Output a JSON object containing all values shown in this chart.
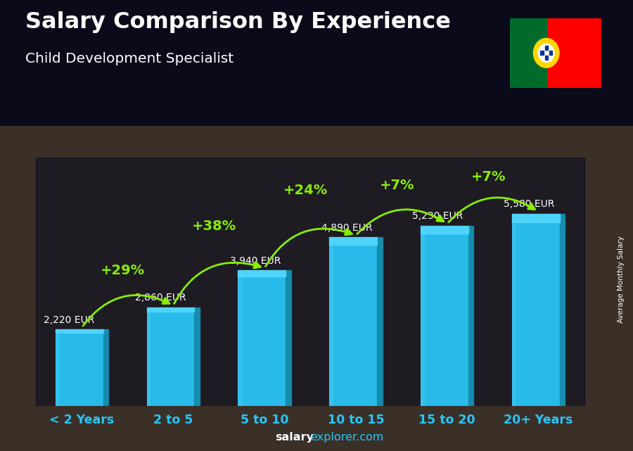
{
  "title": "Salary Comparison By Experience",
  "subtitle": "Child Development Specialist",
  "categories": [
    "< 2 Years",
    "2 to 5",
    "5 to 10",
    "10 to 15",
    "15 to 20",
    "20+ Years"
  ],
  "values": [
    2220,
    2860,
    3940,
    4890,
    5230,
    5580
  ],
  "bar_color_main": "#29C5F6",
  "bar_color_light": "#55D8FF",
  "bar_color_dark": "#1A9DC4",
  "bar_color_side": "#1588A8",
  "pct_changes": [
    "+29%",
    "+38%",
    "+24%",
    "+7%",
    "+7%"
  ],
  "salary_labels": [
    "2,220 EUR",
    "2,860 EUR",
    "3,940 EUR",
    "4,890 EUR",
    "5,230 EUR",
    "5,580 EUR"
  ],
  "ylabel_side": "Average Monthly Salary",
  "footer_bold": "salary",
  "footer_regular": "explorer.com",
  "pct_color": "#88EE00",
  "arrow_color": "#88EE00",
  "title_color": "#FFFFFF",
  "subtitle_color": "#FFFFFF",
  "label_color": "#FFFFFF",
  "xtick_color": "#29C5F6",
  "bg_overlay": [
    0.05,
    0.05,
    0.1,
    0.72
  ],
  "ylim": [
    0,
    7200
  ],
  "bar_width": 0.58,
  "figsize": [
    9.0,
    6.41
  ],
  "dpi": 100,
  "flag_green": "#006B2B",
  "flag_red": "#FF0000",
  "flag_yellow": "#FFD700"
}
